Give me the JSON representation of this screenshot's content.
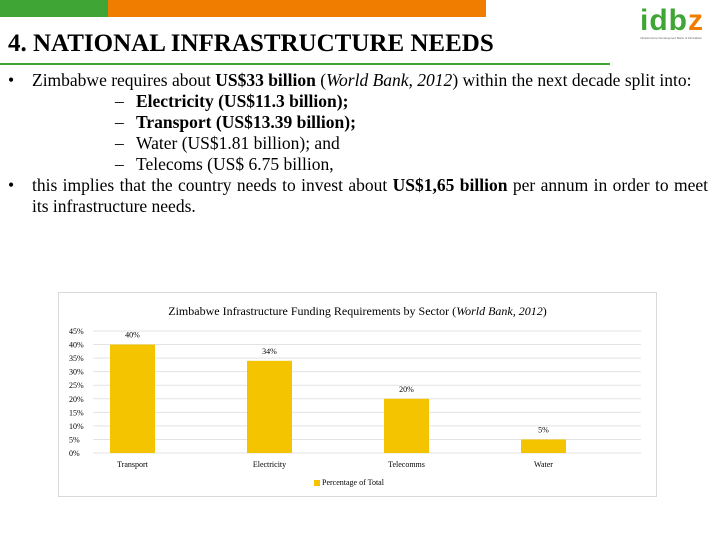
{
  "slide": {
    "title": "4. NATIONAL INFRASTRUCTURE NEEDS",
    "logo_text": {
      "part1": "idb",
      "part2": "z"
    },
    "logo_tagline": "Infrastructure Development Bank of Zimbabwe",
    "colors": {
      "green": "#3fa535",
      "orange": "#f07d00",
      "bar": "#f5c400"
    }
  },
  "bullets": {
    "b1": {
      "pre": "Zimbabwe requires about ",
      "bold": "US$33 billion",
      "mid": " (",
      "italic": "World Bank, 2012",
      "post": ") within the next decade split into:"
    },
    "subs": [
      {
        "text": "Electricity (US$11.3 billion);",
        "bold": true
      },
      {
        "text": "Transport (US$13.39 billion);",
        "bold": true
      },
      {
        "text": "Water (US$1.81 billion); and",
        "bold": false
      },
      {
        "text": "Telecoms (US$ 6.75 billion,",
        "bold": false
      }
    ],
    "b2": {
      "pre": "this implies that the country needs to invest about ",
      "bold": "US$1,65 billion",
      "post": " per annum in order to meet its infrastructure needs."
    }
  },
  "chart_data": {
    "type": "bar",
    "title_pre": "Zimbabwe Infrastructure Funding Requirements by Sector (",
    "title_italic": "World Bank, 2012",
    "title_post": ")",
    "categories": [
      "Transport",
      "Electricity",
      "Telecomms",
      "Water"
    ],
    "series": [
      {
        "name": "Percentage of Total",
        "values": [
          40,
          34,
          20,
          5
        ],
        "labels": [
          "40%",
          "34%",
          "20%",
          "5%"
        ]
      }
    ],
    "y_ticks": [
      "0%",
      "5%",
      "10%",
      "15%",
      "20%",
      "25%",
      "30%",
      "35%",
      "40%",
      "45%"
    ],
    "ylim": [
      0,
      45
    ],
    "grid": true,
    "legend": "bottom"
  }
}
